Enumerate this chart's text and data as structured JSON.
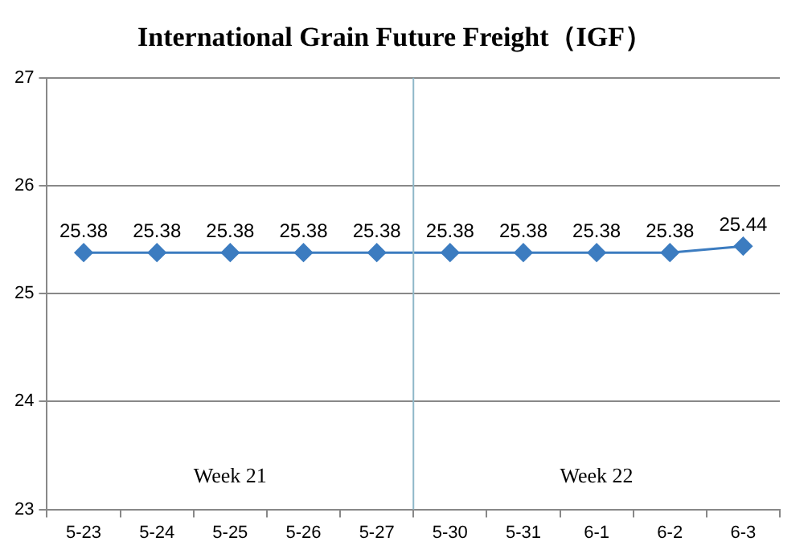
{
  "chart_data": {
    "type": "line",
    "title": "International Grain Future Freight（IGF）",
    "categories": [
      "5-23",
      "5-24",
      "5-25",
      "5-26",
      "5-27",
      "5-30",
      "5-31",
      "6-1",
      "6-2",
      "6-3"
    ],
    "series": [
      {
        "color": "#3c7cc0",
        "values": [
          25.38,
          25.38,
          25.38,
          25.38,
          25.38,
          25.38,
          25.38,
          25.38,
          25.38,
          25.44
        ]
      }
    ],
    "ylim": [
      23,
      27
    ],
    "yticks": [
      23,
      24,
      25,
      26,
      27
    ],
    "grid": "y",
    "legend": false,
    "marker": "diamond",
    "line_style": "solid",
    "data_labels": true,
    "annotations": [
      "Week 21",
      "Week 22"
    ],
    "ref_lines": [
      {
        "axis": "x",
        "value": "5-30",
        "color": "#8fb8c8"
      }
    ]
  }
}
